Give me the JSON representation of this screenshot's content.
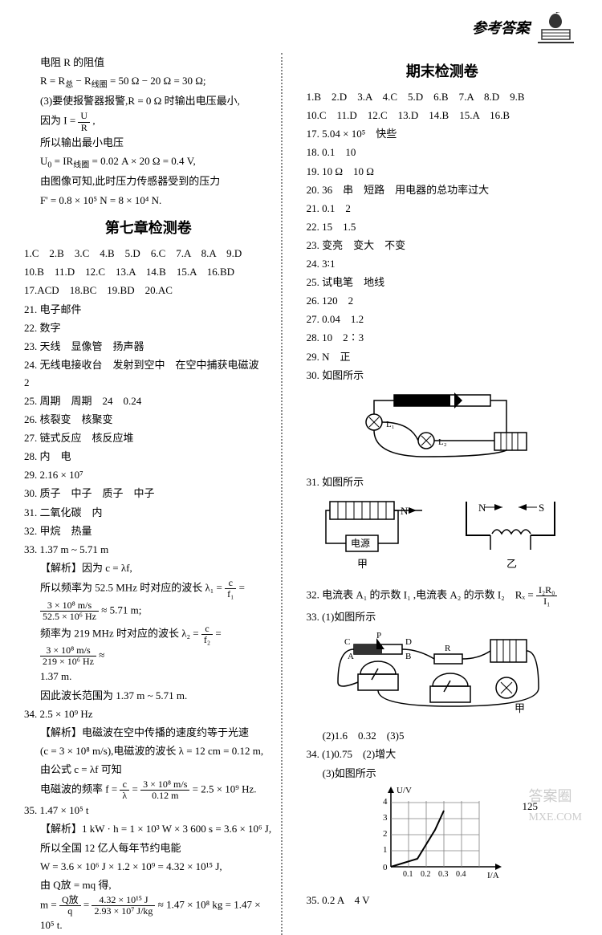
{
  "header": {
    "title": "参考答案"
  },
  "leftColumn": {
    "preamble": {
      "p1": "电阻 R 的阻值",
      "p2_1": "R = R",
      "p2_2": " − R",
      "p2_3": " = 50 Ω − 20 Ω = 30 Ω;",
      "p3": "(3)要使报警器报警,R = 0 Ω 时输出电压最小,",
      "p4_1": "因为 I = ",
      "p4_frac_num": "U",
      "p4_frac_den": "R",
      "p4_2": ",",
      "p5": "所以输出最小电压",
      "p6_1": "U",
      "p6_2": " = IR",
      "p6_3": " = 0.02 A × 20 Ω = 0.4 V,",
      "p7": "由图像可知,此时压力传感器受到的压力",
      "p8": "F' = 0.8 × 10⁵ N = 8 × 10⁴ N."
    },
    "chapter7": {
      "title": "第七章检测卷",
      "answers1": "1.C　2.B　3.C　4.B　5.D　6.C　7.A　8.A　9.D",
      "answers2": "10.B　11.D　12.C　13.A　14.B　15.A　16.BD",
      "answers3": "17.ACD　18.BC　19.BD　20.AC",
      "q21": "21. 电子邮件",
      "q22": "22. 数字",
      "q23": "23. 天线　显像管　扬声器",
      "q24": "24. 无线电接收台　发射到空中　在空中捕获电磁波　2",
      "q25": "25. 周期　周期　24　0.24",
      "q26": "26. 核裂变　核聚变",
      "q27": "27. 链式反应　核反应堆",
      "q28": "28. 内　电",
      "q29": "29. 2.16 × 10⁷",
      "q30": "30. 质子　中子　质子　中子",
      "q31": "31. 二氧化碳　内",
      "q32": "32. 甲烷　热量",
      "q33": "33. 1.37 m ~ 5.71 m",
      "q33_analysis_label": "【解析】",
      "q33_analysis_1": "因为 c = λf,",
      "q33_analysis_2_1": "所以频率为 52.5 MHz 时对应的波长 λ₁ = ",
      "q33_frac1_num": "c",
      "q33_frac1_den": "f₁",
      "q33_eq": " =",
      "q33_frac2_num": "3 × 10⁸ m/s",
      "q33_frac2_den": "52.5 × 10⁶ Hz",
      "q33_analysis_2_2": " ≈ 5.71 m;",
      "q33_analysis_3_1": "频率为 219 MHz 时对应的波长 λ₂ = ",
      "q33_frac3_num": "c",
      "q33_frac3_den": "f₂",
      "q33_eq2": " = ",
      "q33_frac4_num": "3 × 10⁸ m/s",
      "q33_frac4_den": "219 × 10⁶ Hz",
      "q33_approx": " ≈",
      "q33_analysis_3_2": "1.37 m.",
      "q33_conclusion": "因此波长范围为 1.37 m ~ 5.71 m.",
      "q34": "34. 2.5 × 10⁹ Hz",
      "q34_analysis_1": "【解析】电磁波在空中传播的速度约等于光速",
      "q34_analysis_2": "(c = 3 × 10⁸ m/s),电磁波的波长 λ = 12 cm = 0.12 m,",
      "q34_analysis_3": "由公式 c = λf 可知",
      "q34_analysis_4_1": "电磁波的频率 f = ",
      "q34_frac1_num": "c",
      "q34_frac1_den": "λ",
      "q34_eq": " = ",
      "q34_frac2_num": "3 × 10⁸ m/s",
      "q34_frac2_den": "0.12 m",
      "q34_analysis_4_2": " = 2.5 × 10⁹ Hz.",
      "q35": "35. 1.47 × 10⁵ t",
      "q35_analysis_1": "【解析】1 kW · h = 1 × 10³ W × 3 600 s = 3.6 × 10⁶ J,",
      "q35_analysis_2": "所以全国 12 亿人每年节约电能",
      "q35_analysis_3": "W = 3.6 × 10⁶ J × 1.2 × 10⁹ = 4.32 × 10¹⁵ J,",
      "q35_analysis_4": "由 Q放 = mq 得,",
      "q35_analysis_5_1": "m = ",
      "q35_frac1_num": "Q放",
      "q35_frac1_den": "q",
      "q35_eq": " = ",
      "q35_frac2_num": "4.32 × 10¹⁵ J",
      "q35_frac2_den": "2.93 × 10⁷ J/kg",
      "q35_analysis_5_2": " ≈ 1.47 × 10⁸ kg = 1.47 × 10⁵ t."
    }
  },
  "rightColumn": {
    "finalExam": {
      "title": "期末检测卷",
      "answers1": "1.B　2.D　3.A　4.C　5.D　6.B　7.A　8.D　9.B",
      "answers2": "10.C　11.D　12.C　13.D　14.B　15.A　16.B",
      "q17": "17. 5.04 × 10⁵　快些",
      "q18": "18. 0.1　10",
      "q19": "19. 10 Ω　10 Ω",
      "q20": "20. 36　串　短路　用电器的总功率过大",
      "q21": "21. 0.1　2",
      "q22": "22. 15　1.5",
      "q23": "23. 变亮　变大　不变",
      "q24": "24. 3∶1",
      "q25": "25. 试电笔　地线",
      "q26": "26. 120　2",
      "q27": "27. 0.04　1.2",
      "q28": "28. 10　2∶3",
      "q29": "29. N　正",
      "q30": "30. 如图所示",
      "diagram30": {
        "labels": {
          "l1": "L₁",
          "l2": "L₂"
        }
      },
      "q31": "31. 如图所示",
      "diagram31": {
        "labels": {
          "n": "N",
          "s": "S",
          "label1": "甲",
          "label2": "乙",
          "source": "电源"
        }
      },
      "q32_1": "32. 电流表 A₁ 的示数 I₁ ,电流表 A₂ 的示数 I₂　Rₓ = ",
      "q32_frac_num": "I₂R₀",
      "q32_frac_den": "I₁",
      "q33": "33. (1)如图所示",
      "diagram33": {
        "labels": {
          "a": "A",
          "b": "B",
          "c": "C",
          "d": "D",
          "p": "P",
          "r": "R",
          "label": "甲"
        }
      },
      "q33_2": "(2)1.6　0.32　(3)5",
      "q34": "34. (1)0.75　(2)增大",
      "q34_3": "(3)如图所示",
      "chart34": {
        "ylabel": "U/V",
        "xlabel": "I/A",
        "ymax": 4,
        "yticks": [
          0,
          1,
          2,
          3,
          4
        ],
        "xticks": [
          "0.1",
          "0.2",
          "0.3",
          "0.4"
        ],
        "grid_color": "#808080",
        "line_color": "#000000",
        "points": [
          [
            0,
            0
          ],
          [
            0.15,
            0.5
          ],
          [
            0.25,
            2.3
          ],
          [
            0.3,
            3.5
          ]
        ]
      },
      "q35": "35. 0.2 A　4 V"
    }
  },
  "pageNumber": "125",
  "watermark": "MXE.COM",
  "watermark2": "答案圈"
}
